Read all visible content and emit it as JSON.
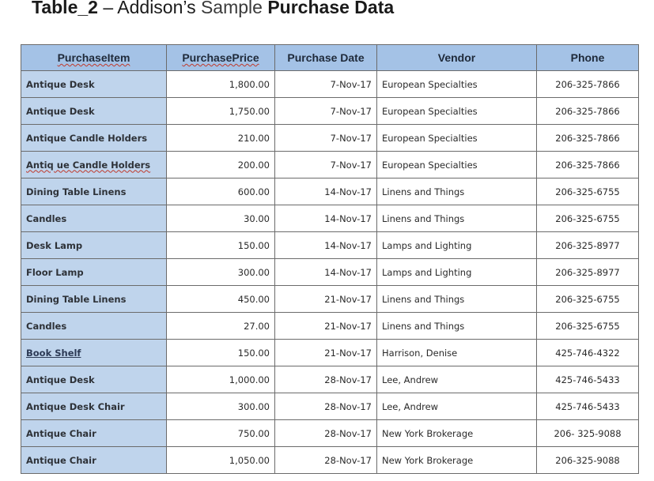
{
  "title": {
    "prefix": "Table_2",
    "dash": " – ",
    "part1": "Addison’s",
    "part2": " Sample ",
    "part3": "Purchase Data"
  },
  "columns": [
    "PurchaseItem",
    "PurchasePrice",
    "Purchase Date",
    "Vendor",
    "Phone"
  ],
  "rows": [
    [
      "Antique Desk",
      "1,800.00",
      "7-Nov-17",
      "European Specialties",
      "206-325-7866"
    ],
    [
      "Antique Desk",
      "1,750.00",
      "7-Nov-17",
      "European Specialties",
      "206-325-7866"
    ],
    [
      "Antique Candle Holders",
      "210.00",
      "7-Nov-17",
      "European Specialties",
      "206-325-7866"
    ],
    [
      "Antiq ue Candle Holders",
      "200.00",
      "7-Nov-17",
      "European Specialties",
      "206-325-7866"
    ],
    [
      "Dining Table Linens",
      "600.00",
      "14-Nov-17",
      "Linens and Things",
      "206-325-6755"
    ],
    [
      "Candles",
      "30.00",
      "14-Nov-17",
      "Linens and Things",
      "206-325-6755"
    ],
    [
      "Desk Lamp",
      "150.00",
      "14-Nov-17",
      "Lamps and Lighting",
      "206-325-8977"
    ],
    [
      "Floor Lamp",
      "300.00",
      "14-Nov-17",
      "Lamps and Lighting",
      "206-325-8977"
    ],
    [
      "Dining Table Linens",
      "450.00",
      "21-Nov-17",
      "Linens and Things",
      "206-325-6755"
    ],
    [
      "Candles",
      "27.00",
      "21-Nov-17",
      "Linens and Things",
      "206-325-6755"
    ],
    [
      "Book Shelf",
      "150.00",
      "21-Nov-17",
      "Harrison, Denise",
      "425-746-4322"
    ],
    [
      "Antique Desk",
      "1,000.00",
      "28-Nov-17",
      "Lee, Andrew",
      "425-746-5433"
    ],
    [
      "Antique Desk Chair",
      "300.00",
      "28-Nov-17",
      "Lee, Andrew",
      "425-746-5433"
    ],
    [
      "Antique Chair",
      "750.00",
      "28-Nov-17",
      "New York Brokerage",
      "206- 325-9088"
    ],
    [
      "Antique Chair",
      "1,050.00",
      "28-Nov-17",
      "New York Brokerage",
      "206-325-9088"
    ]
  ],
  "colors": {
    "header_bg": "#a4c2e6",
    "item_bg": "#bfd4ec",
    "border": "#6b6b6b"
  }
}
